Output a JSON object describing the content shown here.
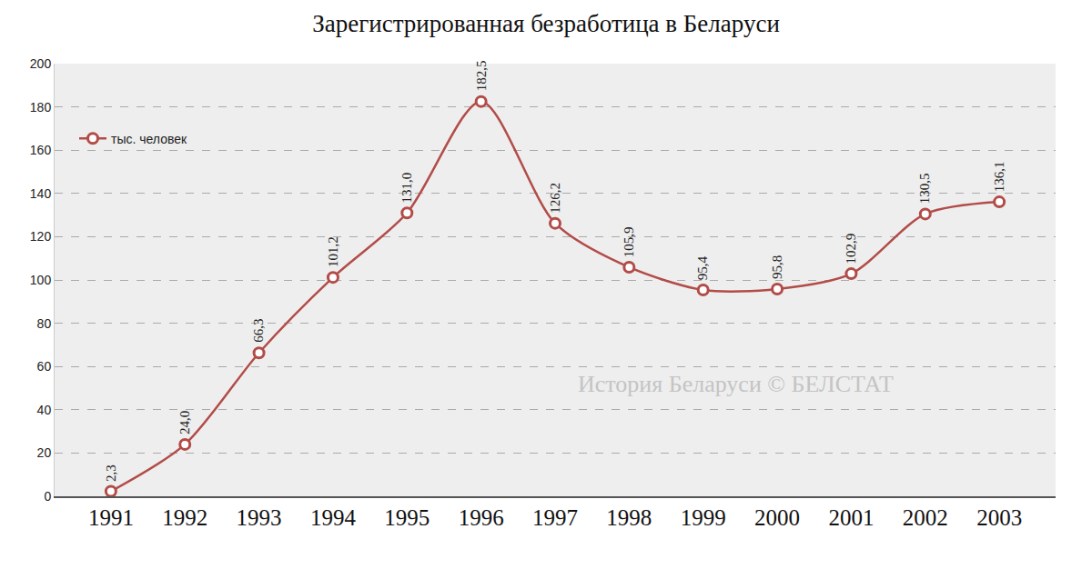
{
  "chart_data": {
    "type": "line",
    "title": "Зарегистрированная безработица в Беларуси",
    "categories": [
      "1991",
      "1992",
      "1993",
      "1994",
      "1995",
      "1996",
      "1997",
      "1998",
      "1999",
      "2000",
      "2001",
      "2002",
      "2003"
    ],
    "series": [
      {
        "name": "тыс. человек",
        "color": "#b24c48",
        "values": [
          2.3,
          24.0,
          66.3,
          101.2,
          131.0,
          182.5,
          126.2,
          105.9,
          95.4,
          95.8,
          102.9,
          130.5,
          136.1
        ],
        "value_labels": [
          "2,3",
          "24,0",
          "66,3",
          "101,2",
          "131,0",
          "182,5",
          "126,2",
          "105,9",
          "95,4",
          "95,8",
          "102,9",
          "130,5",
          "136,1"
        ]
      }
    ],
    "ylim": [
      0,
      200
    ],
    "yticks": [
      0,
      20,
      40,
      60,
      80,
      100,
      120,
      140,
      160,
      180,
      200
    ],
    "grid": true,
    "legend": "upper left",
    "data_labels": true,
    "marker": "circle",
    "line_style": "spline",
    "annotations": [
      {
        "text": "История Беларуси © БЕЛСТАТ"
      }
    ]
  }
}
